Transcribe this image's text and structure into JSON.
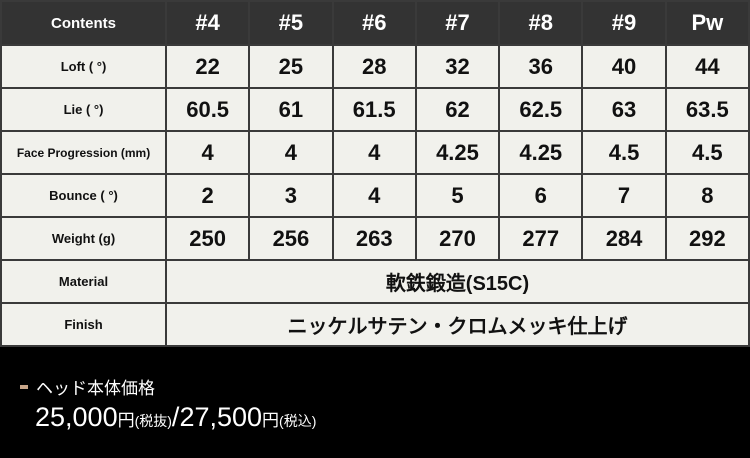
{
  "table": {
    "header": [
      "Contents",
      "#4",
      "#5",
      "#6",
      "#7",
      "#8",
      "#9",
      "Pw"
    ],
    "rows": [
      {
        "label": "Loft ( °)",
        "values": [
          "22",
          "25",
          "28",
          "32",
          "36",
          "40",
          "44"
        ]
      },
      {
        "label": "Lie ( °)",
        "values": [
          "60.5",
          "61",
          "61.5",
          "62",
          "62.5",
          "63",
          "63.5"
        ]
      },
      {
        "label": "Face Progression (mm)",
        "values": [
          "4",
          "4",
          "4",
          "4.25",
          "4.25",
          "4.5",
          "4.5"
        ]
      },
      {
        "label": "Bounce ( °)",
        "values": [
          "2",
          "3",
          "4",
          "5",
          "6",
          "7",
          "8"
        ]
      },
      {
        "label": "Weight (g)",
        "values": [
          "250",
          "256",
          "263",
          "270",
          "277",
          "284",
          "292"
        ]
      }
    ],
    "material": {
      "label": "Material",
      "value": "軟鉄鍛造(S15C)"
    },
    "finish": {
      "label": "Finish",
      "value": "ニッケルサテン・クロムメッキ仕上げ"
    }
  },
  "price": {
    "title": "ヘッド本体価格",
    "excl": "25,000",
    "yen": "円",
    "excl_note": "(税抜)",
    "sep": "/",
    "incl": "27,500",
    "incl_note": "(税込)",
    "bullet_color": "#c8a68a"
  }
}
